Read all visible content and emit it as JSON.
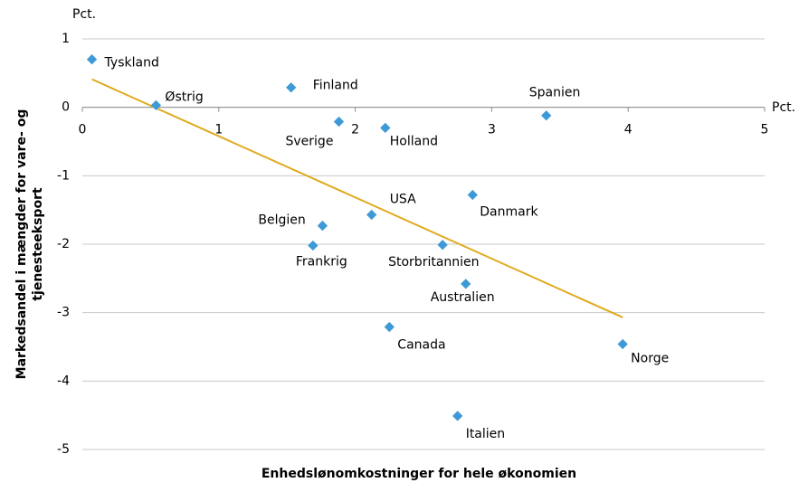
{
  "chart_data": {
    "type": "scatter",
    "y_unit": "Pct.",
    "x_unit": "Pct.",
    "xlabel": "Enhedslønomkostninger for hele økonomien",
    "ylabel": [
      "Markedsandel i mængder for vare- og",
      "tjenesteeksport"
    ],
    "xlim": [
      0,
      5
    ],
    "xticks": [
      0,
      1,
      2,
      3,
      4,
      5
    ],
    "ylim": [
      -5,
      1
    ],
    "yticks": [
      -5,
      -4,
      -3,
      -2,
      -1,
      0,
      1
    ],
    "grid": true,
    "series": [
      {
        "color": "#3d9ad6",
        "labels": [
          "Tyskland",
          "Østrig",
          "Finland",
          "Sverige",
          "Holland",
          "Spanien",
          "Danmark",
          "USA",
          "Belgien",
          "Frankrig",
          "Storbritannien",
          "Australien",
          "Canada",
          "Norge",
          "Italien"
        ],
        "x": [
          0.07,
          0.54,
          1.53,
          1.88,
          2.22,
          3.4,
          2.86,
          2.12,
          1.76,
          1.69,
          2.64,
          2.81,
          2.25,
          3.96,
          2.75
        ],
        "y": [
          0.7,
          0.03,
          0.29,
          -0.21,
          -0.3,
          -0.12,
          -1.28,
          -1.57,
          -1.73,
          -2.02,
          -2.01,
          -2.58,
          -3.21,
          -3.46,
          -4.51
        ]
      }
    ],
    "trendline": {
      "color": "#e0aa1f",
      "x": [
        0.07,
        3.96
      ],
      "y": [
        0.41,
        -3.07
      ]
    }
  }
}
